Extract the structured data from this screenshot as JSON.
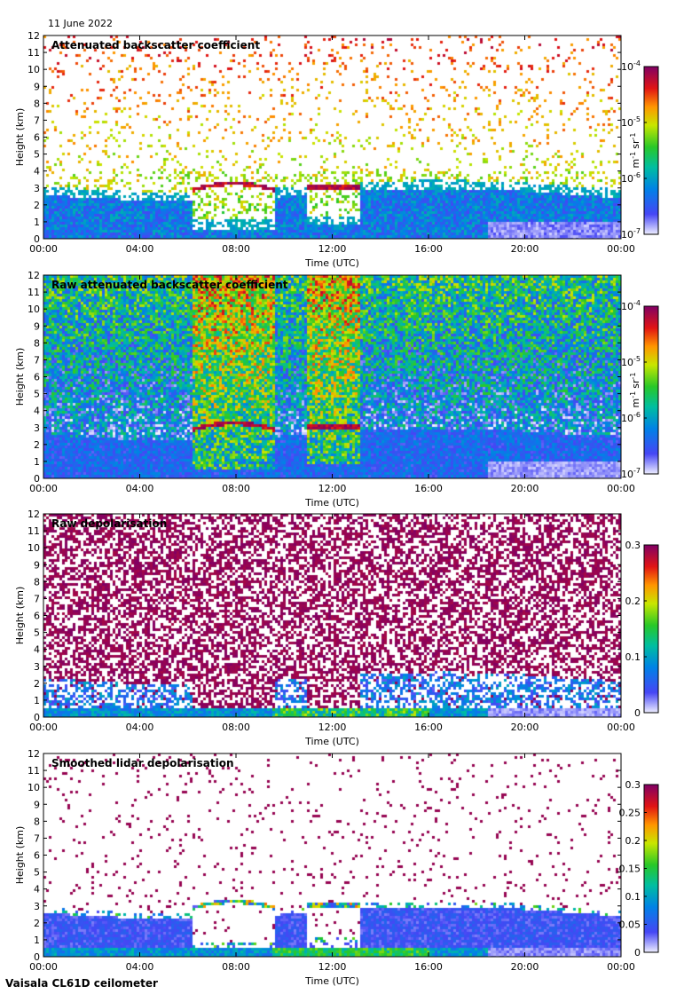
{
  "header": {
    "date": "11 June 2022"
  },
  "footer": {
    "instrument": "Vaisala CL61D ceilometer"
  },
  "chart_data": [
    {
      "type": "heatmap",
      "title": "Attenuated backscatter coefficient",
      "xlabel": "Time (UTC)",
      "ylabel": "Height (km)",
      "xticks": [
        "00:00",
        "04:00",
        "08:00",
        "12:00",
        "16:00",
        "20:00",
        "00:00"
      ],
      "yticks": [
        "0",
        "1",
        "2",
        "3",
        "4",
        "5",
        "6",
        "7",
        "8",
        "9",
        "10",
        "11",
        "12"
      ],
      "xlim": [
        0,
        24
      ],
      "ylim": [
        0,
        12
      ],
      "colorbar": {
        "scale": "log",
        "range": [
          1e-07,
          0.0001
        ],
        "ticks": [
          {
            "base": "10",
            "exp": "-7"
          },
          {
            "base": "10",
            "exp": "-6"
          },
          {
            "base": "10",
            "exp": "-5"
          },
          {
            "base": "10",
            "exp": "-4"
          }
        ],
        "unit": {
          "m": "m",
          "m_exp": "-1",
          "sr": "sr",
          "sr_exp": "-1"
        }
      },
      "features": {
        "cloud_layers": [
          {
            "start_h": 6.2,
            "end_h": 9.6,
            "height_km": [
              2.9,
              3.3
            ]
          },
          {
            "start_h": 11.0,
            "end_h": 13.2,
            "height_km": [
              3.0,
              3.1
            ]
          }
        ],
        "boundary_layer_top_km": 2.5
      }
    },
    {
      "type": "heatmap",
      "title": "Raw attenuated backscatter coefficient",
      "xlabel": "Time (UTC)",
      "ylabel": "Height (km)",
      "xticks": [
        "00:00",
        "04:00",
        "08:00",
        "12:00",
        "16:00",
        "20:00",
        "00:00"
      ],
      "yticks": [
        "0",
        "1",
        "2",
        "3",
        "4",
        "5",
        "6",
        "7",
        "8",
        "9",
        "10",
        "11",
        "12"
      ],
      "xlim": [
        0,
        24
      ],
      "ylim": [
        0,
        12
      ],
      "colorbar": {
        "scale": "log",
        "range": [
          1e-07,
          0.0001
        ],
        "ticks": [
          {
            "base": "10",
            "exp": "-7"
          },
          {
            "base": "10",
            "exp": "-6"
          },
          {
            "base": "10",
            "exp": "-5"
          },
          {
            "base": "10",
            "exp": "-4"
          }
        ],
        "unit": {
          "m": "m",
          "m_exp": "-1",
          "sr": "sr",
          "sr_exp": "-1"
        }
      }
    },
    {
      "type": "heatmap",
      "title": "Raw depolarisation",
      "xlabel": "Time (UTC)",
      "ylabel": "Height (km)",
      "xticks": [
        "00:00",
        "04:00",
        "08:00",
        "12:00",
        "16:00",
        "20:00",
        "00:00"
      ],
      "yticks": [
        "0",
        "1",
        "2",
        "3",
        "4",
        "5",
        "6",
        "7",
        "8",
        "9",
        "10",
        "11",
        "12"
      ],
      "xlim": [
        0,
        24
      ],
      "ylim": [
        0,
        12
      ],
      "colorbar": {
        "scale": "linear",
        "range": [
          0,
          0.3
        ],
        "ticks": [
          "0",
          "0.1",
          "0.2",
          "0.3"
        ]
      }
    },
    {
      "type": "heatmap",
      "title": "Smoothed lidar depolarisation",
      "xlabel": "Time (UTC)",
      "ylabel": "Height (km)",
      "xticks": [
        "00:00",
        "04:00",
        "08:00",
        "12:00",
        "16:00",
        "20:00",
        "00:00"
      ],
      "yticks": [
        "0",
        "1",
        "2",
        "3",
        "4",
        "5",
        "6",
        "7",
        "8",
        "9",
        "10",
        "11",
        "12"
      ],
      "xlim": [
        0,
        24
      ],
      "ylim": [
        0,
        12
      ],
      "colorbar": {
        "scale": "linear",
        "range": [
          0,
          0.3
        ],
        "ticks": [
          "0",
          "0.05",
          "0.1",
          "0.15",
          "0.2",
          "0.25",
          "0.3"
        ]
      }
    }
  ]
}
